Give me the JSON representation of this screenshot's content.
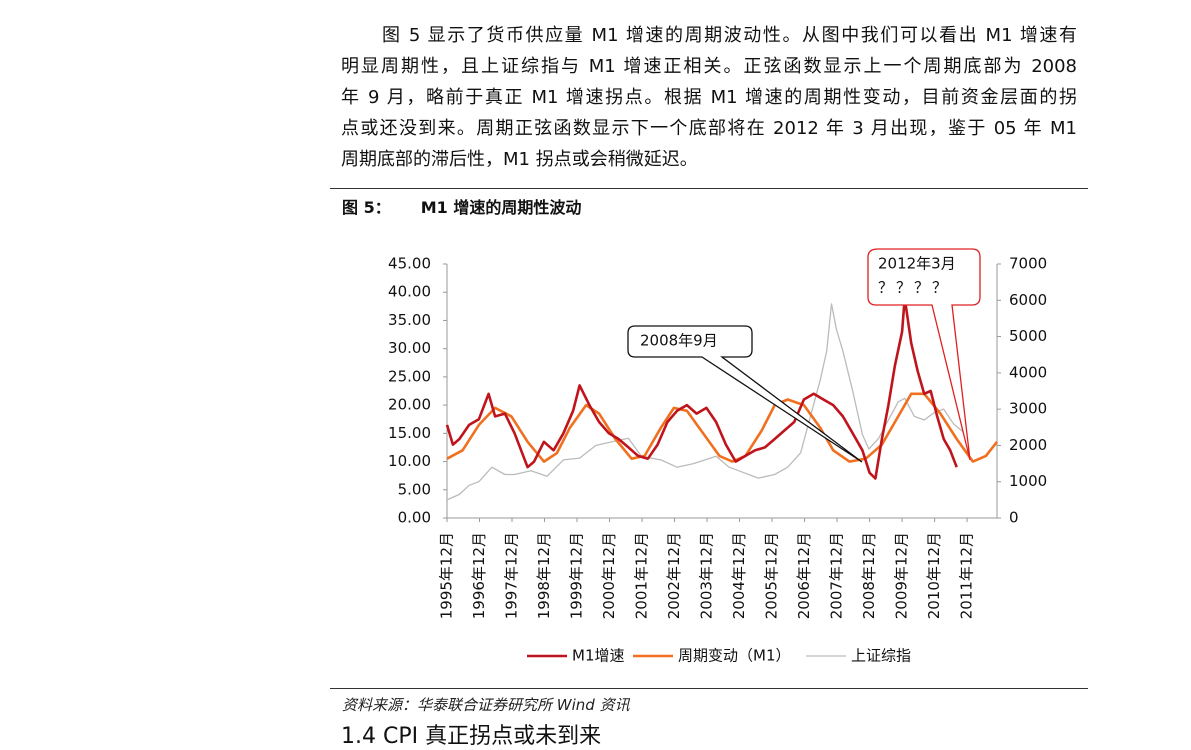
{
  "paragraph": [
    "图 5 显示了货币供应量 M1 增速的周期波动性。从图中我们可以看出 M1 增速有",
    "明显周期性，且上证综指与 M1 增速正相关。正弦函数显示上一个周期底部为 2008",
    "年 9 月，略前于真正 M1 增速拐点。根据 M1 增速的周期性变动，目前资金层面的拐",
    "点或还没到来。周期正弦函数显示下一个底部将在 2012 年 3 月出现，鉴于 05 年 M1",
    "周期底部的滞后性，M1 拐点或会稍微延迟。"
  ],
  "caption": {
    "number": "图 5：",
    "title": "M1 增速的周期性波动"
  },
  "source": "资料来源：华泰联合证券研究所 Wind 资讯",
  "next_heading": "1.4 CPI 真正拐点或未到来",
  "chart_data": {
    "type": "line",
    "annotations": [
      {
        "text": "2008年9月"
      },
      {
        "text": "2012年3月",
        "subtext": "？？？？"
      }
    ],
    "xlim": [
      1995.92,
      2012.84
    ],
    "xticks": [
      {
        "value": 1995.92,
        "label": "1995年12月"
      },
      {
        "value": 1996.92,
        "label": "1996年12月"
      },
      {
        "value": 1997.92,
        "label": "1997年12月"
      },
      {
        "value": 1998.92,
        "label": "1998年12月"
      },
      {
        "value": 1999.92,
        "label": "1999年12月"
      },
      {
        "value": 2000.92,
        "label": "2000年12月"
      },
      {
        "value": 2001.92,
        "label": "2001年12月"
      },
      {
        "value": 2002.92,
        "label": "2002年12月"
      },
      {
        "value": 2003.92,
        "label": "2003年12月"
      },
      {
        "value": 2004.92,
        "label": "2004年12月"
      },
      {
        "value": 2005.92,
        "label": "2005年12月"
      },
      {
        "value": 2006.92,
        "label": "2006年12月"
      },
      {
        "value": 2007.92,
        "label": "2007年12月"
      },
      {
        "value": 2008.92,
        "label": "2008年12月"
      },
      {
        "value": 2009.92,
        "label": "2009年12月"
      },
      {
        "value": 2010.92,
        "label": "2010年12月"
      },
      {
        "value": 2011.92,
        "label": "2011年12月"
      }
    ],
    "ylim": [
      0,
      45
    ],
    "yticks": [
      {
        "value": 0,
        "label": "0.00"
      },
      {
        "value": 5,
        "label": "5.00"
      },
      {
        "value": 10,
        "label": "10.00"
      },
      {
        "value": 15,
        "label": "15.00"
      },
      {
        "value": 20,
        "label": "20.00"
      },
      {
        "value": 25,
        "label": "25.00"
      },
      {
        "value": 30,
        "label": "30.00"
      },
      {
        "value": 35,
        "label": "35.00"
      },
      {
        "value": 40,
        "label": "40.00"
      },
      {
        "value": 45,
        "label": "45.00"
      }
    ],
    "y2lim": [
      0,
      7000
    ],
    "y2ticks": [
      0,
      1000,
      2000,
      3000,
      4000,
      5000,
      6000,
      7000
    ],
    "series": [
      {
        "name": "M1增速",
        "color": "#c0141c",
        "width": 2.6,
        "x": [
          1995.92,
          1996.1,
          1996.3,
          1996.6,
          1996.9,
          1997.2,
          1997.4,
          1997.7,
          1998.0,
          1998.2,
          1998.4,
          1998.6,
          1998.9,
          1999.2,
          1999.5,
          1999.8,
          2000.0,
          2000.3,
          2000.6,
          2000.9,
          2001.2,
          2001.5,
          2001.8,
          2002.1,
          2002.4,
          2002.7,
          2003.0,
          2003.3,
          2003.6,
          2003.9,
          2004.2,
          2004.5,
          2004.8,
          2005.1,
          2005.4,
          2005.7,
          2006.0,
          2006.3,
          2006.6,
          2006.9,
          2007.2,
          2007.5,
          2007.8,
          2008.1,
          2008.4,
          2008.7,
          2008.92,
          2009.1,
          2009.3,
          2009.5,
          2009.7,
          2009.92,
          2010.0,
          2010.2,
          2010.4,
          2010.6,
          2010.8,
          2011.0,
          2011.2,
          2011.4,
          2011.6
        ],
        "values": [
          16.5,
          13,
          14,
          16.5,
          17.5,
          22,
          18,
          18.5,
          15,
          12,
          9,
          10,
          13.5,
          12,
          15,
          19,
          23.5,
          20,
          17,
          15,
          14,
          12.5,
          11,
          10.5,
          13,
          17,
          19,
          20,
          18.5,
          19.5,
          17,
          13,
          10,
          11,
          12,
          12.5,
          14,
          15.5,
          17,
          21,
          22,
          21,
          20,
          18,
          15,
          12,
          8,
          7,
          14,
          20,
          27,
          33,
          39,
          31,
          26,
          22,
          22.5,
          18,
          14,
          12,
          9
        ]
      },
      {
        "name": "周期变动（M1）",
        "color": "#f07020",
        "width": 2.6,
        "x": [
          1995.92,
          1996.4,
          1996.9,
          1997.4,
          1997.9,
          1998.4,
          1998.9,
          1999.3,
          1999.7,
          2000.2,
          2000.6,
          2001.1,
          2001.6,
          2002.0,
          2002.5,
          2002.9,
          2003.3,
          2003.8,
          2004.3,
          2004.7,
          2005.1,
          2005.6,
          2006.0,
          2006.4,
          2006.9,
          2007.4,
          2007.8,
          2008.3,
          2008.8,
          2009.3,
          2009.8,
          2010.2,
          2010.6,
          2011.1,
          2011.6,
          2012.1,
          2012.5,
          2012.84
        ],
        "values": [
          10.5,
          12,
          16.5,
          19.5,
          18,
          13.5,
          10,
          11.5,
          16,
          20,
          18.5,
          14,
          10.5,
          11,
          16,
          19.5,
          19,
          15,
          11,
          10,
          11,
          15.5,
          20,
          21,
          20,
          16,
          12,
          10,
          10.5,
          13,
          18,
          22,
          22,
          18.5,
          14,
          10,
          11,
          13.5
        ]
      },
      {
        "name": "上证综指",
        "color": "#bbbbbb",
        "width": 1.3,
        "axis": "y2",
        "x": [
          1995.92,
          1996.3,
          1996.6,
          1996.9,
          1997.3,
          1997.7,
          1998.0,
          1998.5,
          1999.0,
          1999.5,
          2000.0,
          2000.5,
          2001.0,
          2001.5,
          2001.9,
          2002.5,
          2003.0,
          2003.5,
          2004.2,
          2004.6,
          2004.9,
          2005.5,
          2006.0,
          2006.4,
          2006.8,
          2007.1,
          2007.4,
          2007.6,
          2007.75,
          2007.9,
          2008.1,
          2008.4,
          2008.7,
          2008.9,
          2009.2,
          2009.5,
          2009.8,
          2010.0,
          2010.3,
          2010.6,
          2010.9,
          2011.2,
          2011.5,
          2011.9
        ],
        "values": [
          500,
          650,
          900,
          1000,
          1400,
          1200,
          1200,
          1300,
          1150,
          1600,
          1650,
          2000,
          2100,
          2200,
          1700,
          1600,
          1400,
          1500,
          1700,
          1400,
          1300,
          1100,
          1200,
          1400,
          1800,
          2800,
          3800,
          4600,
          5900,
          5200,
          4600,
          3500,
          2300,
          1900,
          2200,
          2700,
          3200,
          3300,
          2800,
          2700,
          2900,
          3000,
          2600,
          2300
        ]
      }
    ]
  }
}
